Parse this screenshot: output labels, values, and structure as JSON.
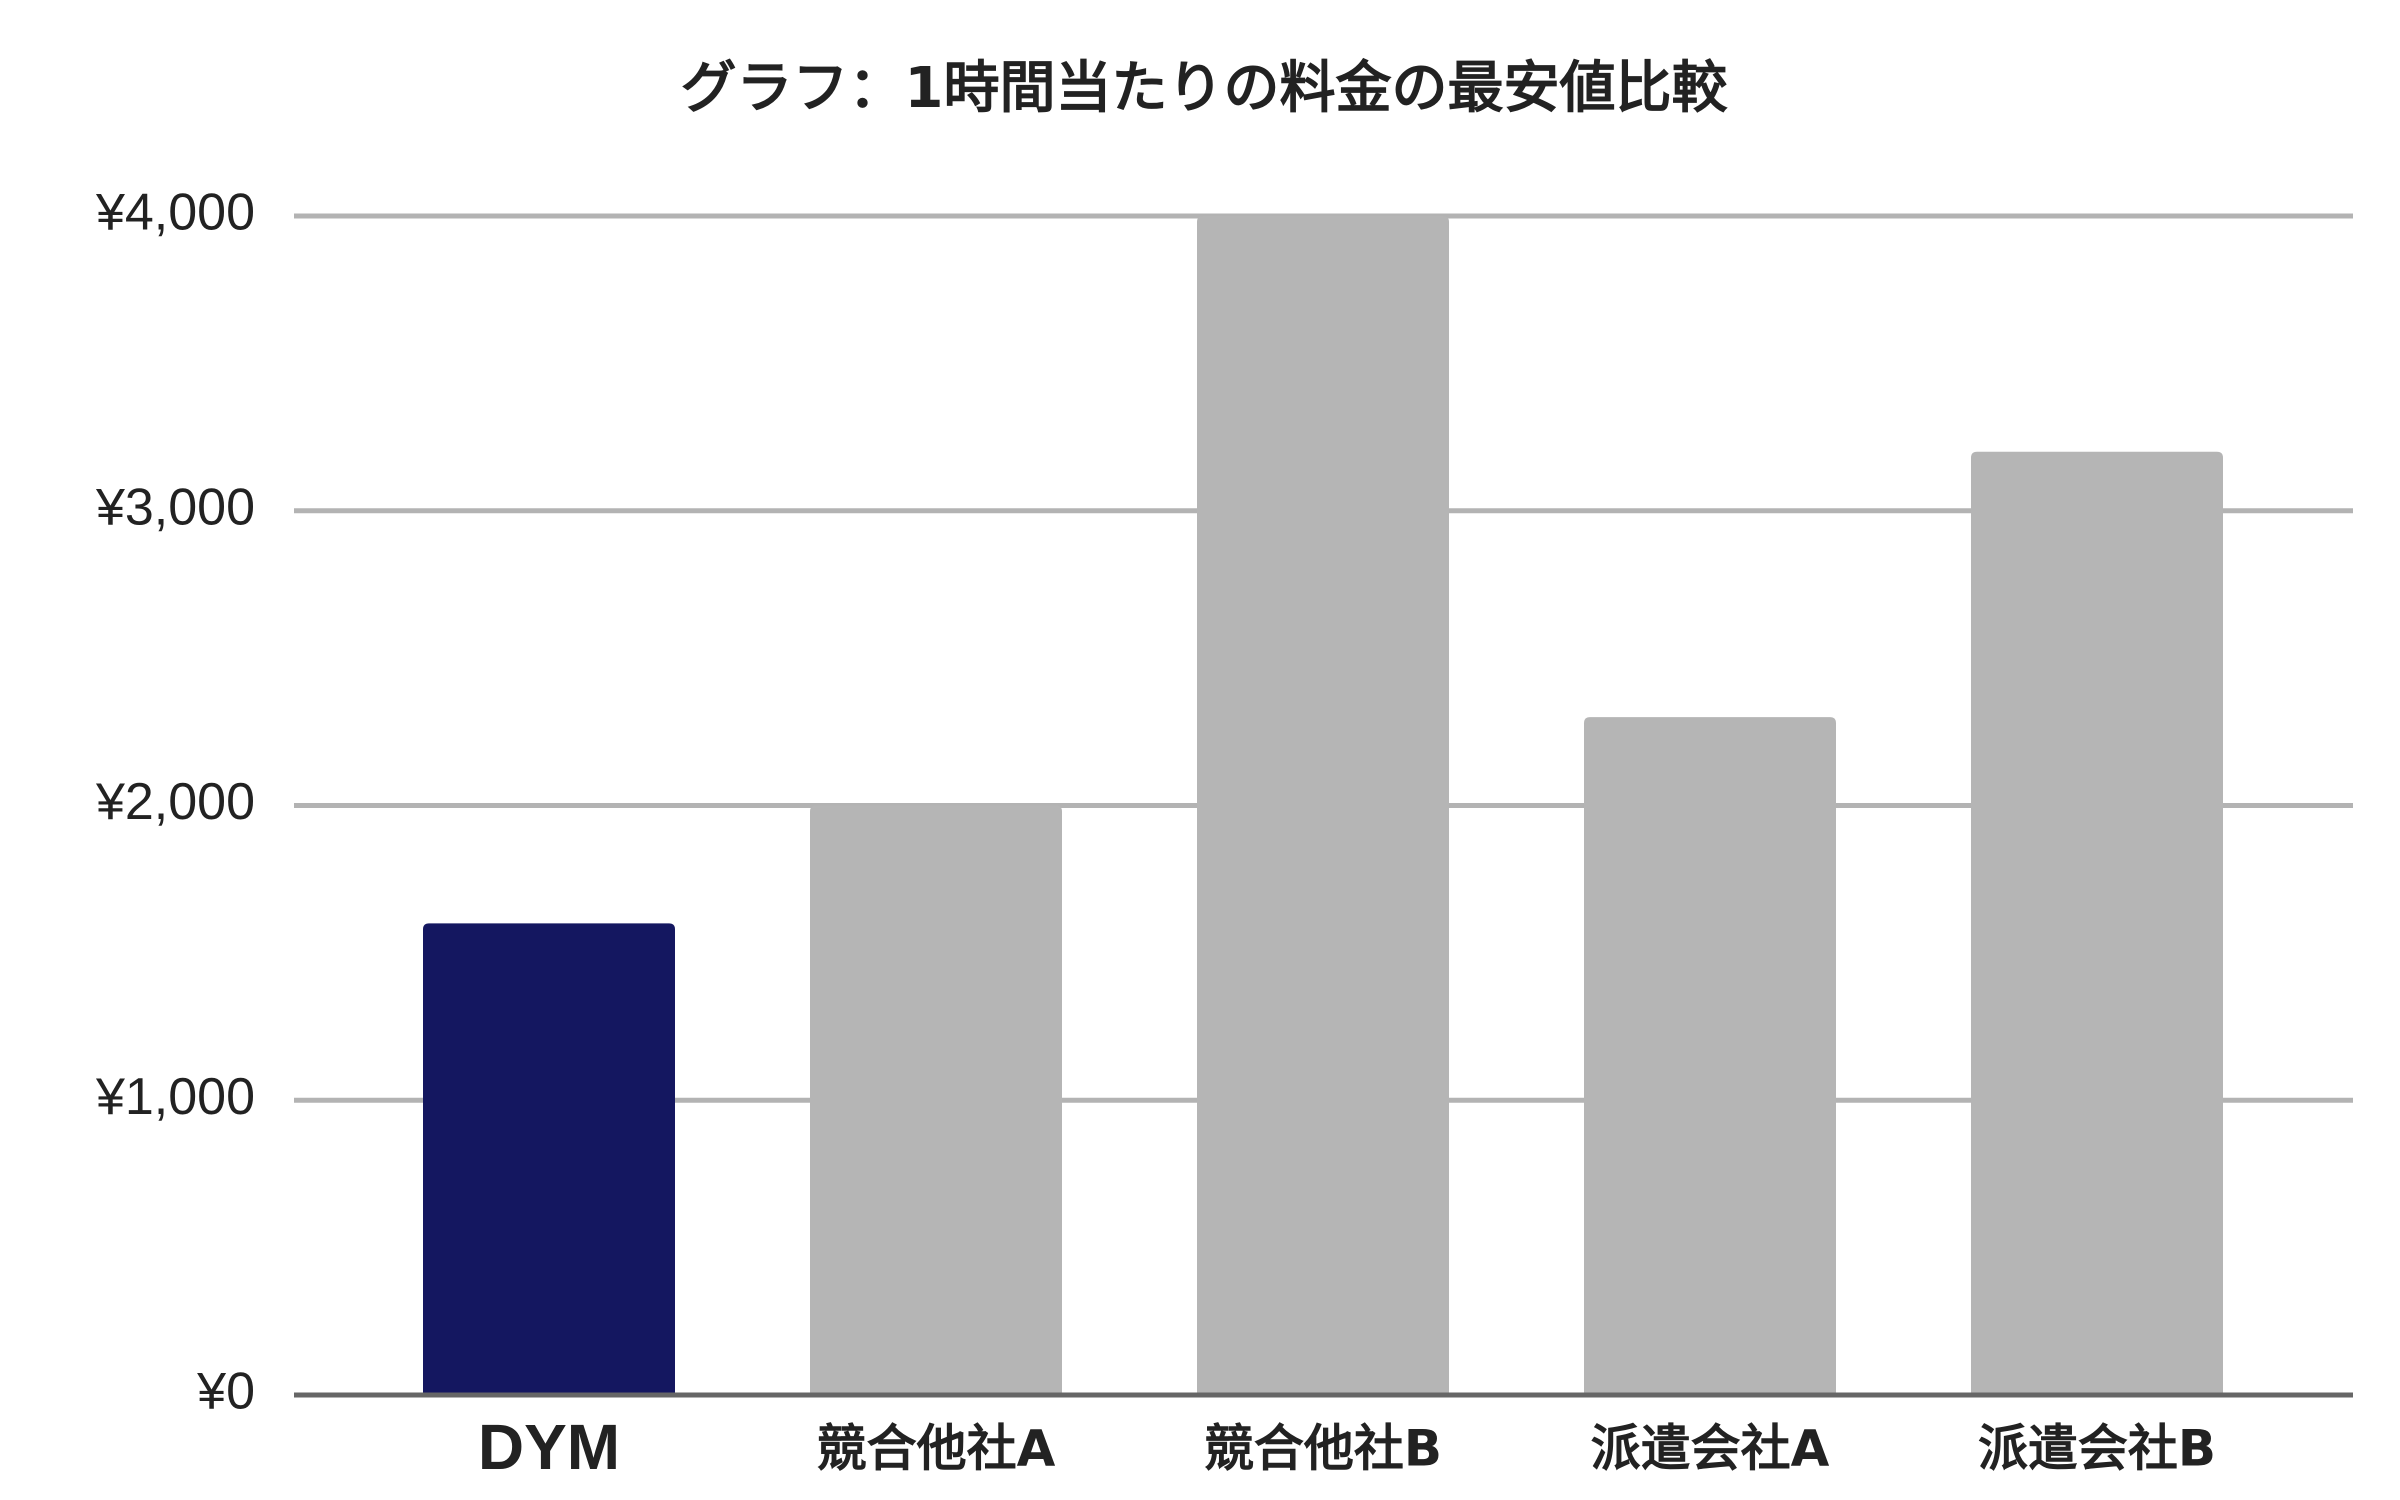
{
  "chart_data": {
    "type": "bar",
    "title": "グラフ：1時間当たりの料金の最安値比較",
    "categories": [
      "DYM",
      "競合他社A",
      "競合他社B",
      "派遣会社A",
      "派遣会社B"
    ],
    "values": [
      1600,
      2000,
      4000,
      2300,
      3200
    ],
    "colors": [
      "#141760",
      "#b5b5b5",
      "#b5b5b5",
      "#b5b5b5",
      "#b5b5b5"
    ],
    "ylim": [
      0,
      4000
    ],
    "yticks": [
      {
        "value": 0,
        "label": "¥0"
      },
      {
        "value": 1000,
        "label": "¥1,000"
      },
      {
        "value": 2000,
        "label": "¥2,000"
      },
      {
        "value": 3000,
        "label": "¥3,000"
      },
      {
        "value": 4000,
        "label": "¥4,000"
      }
    ],
    "grid": true
  }
}
